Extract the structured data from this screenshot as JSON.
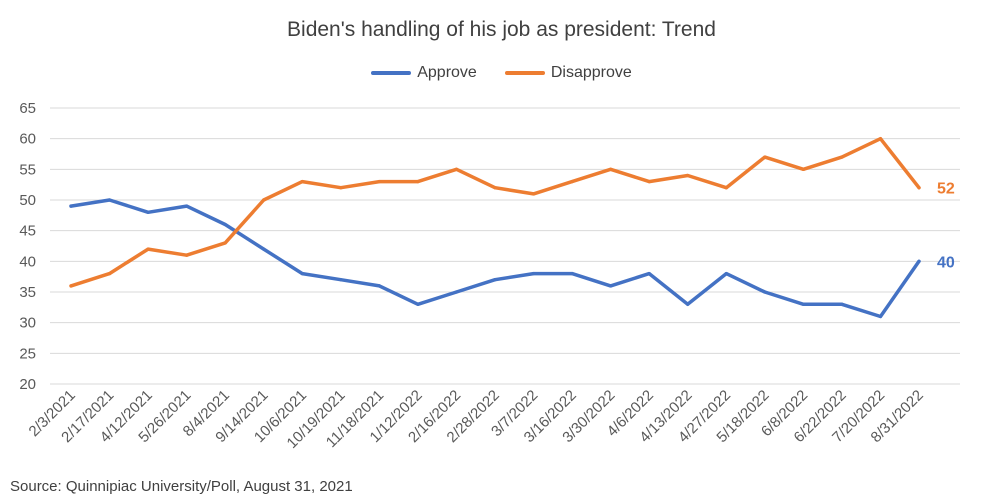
{
  "chart_data": {
    "type": "line",
    "title": "Biden's handling of his job as president: Trend",
    "categories": [
      "2/3/2021",
      "2/17/2021",
      "4/12/2021",
      "5/26/2021",
      "8/4/2021",
      "9/14/2021",
      "10/6/2021",
      "10/19/2021",
      "11/18/2021",
      "1/12/2022",
      "2/16/2022",
      "2/28/2022",
      "3/7/2022",
      "3/16/2022",
      "3/30/2022",
      "4/6/2022",
      "4/13/2022",
      "4/27/2022",
      "5/18/2022",
      "6/8/2022",
      "6/22/2022",
      "7/20/2022",
      "8/31/2022"
    ],
    "series": [
      {
        "name": "Approve",
        "color": "#4472C4",
        "values": [
          49,
          50,
          48,
          49,
          46,
          42,
          38,
          37,
          36,
          33,
          35,
          37,
          38,
          38,
          36,
          38,
          33,
          38,
          35,
          33,
          33,
          31,
          40
        ],
        "end_label": "40"
      },
      {
        "name": "Disapprove",
        "color": "#ED7D31",
        "values": [
          36,
          38,
          42,
          41,
          43,
          50,
          53,
          52,
          53,
          53,
          55,
          52,
          51,
          53,
          55,
          53,
          54,
          52,
          57,
          55,
          57,
          60,
          52
        ],
        "end_label": "52"
      }
    ],
    "yticks": [
      "20",
      "25",
      "30",
      "35",
      "40",
      "45",
      "50",
      "55",
      "60",
      "65"
    ],
    "ylim": [
      20,
      65
    ],
    "grid": true,
    "legend_position": "top-center"
  },
  "source": "Source: Quinnipiac University/Poll, August 31, 2021"
}
